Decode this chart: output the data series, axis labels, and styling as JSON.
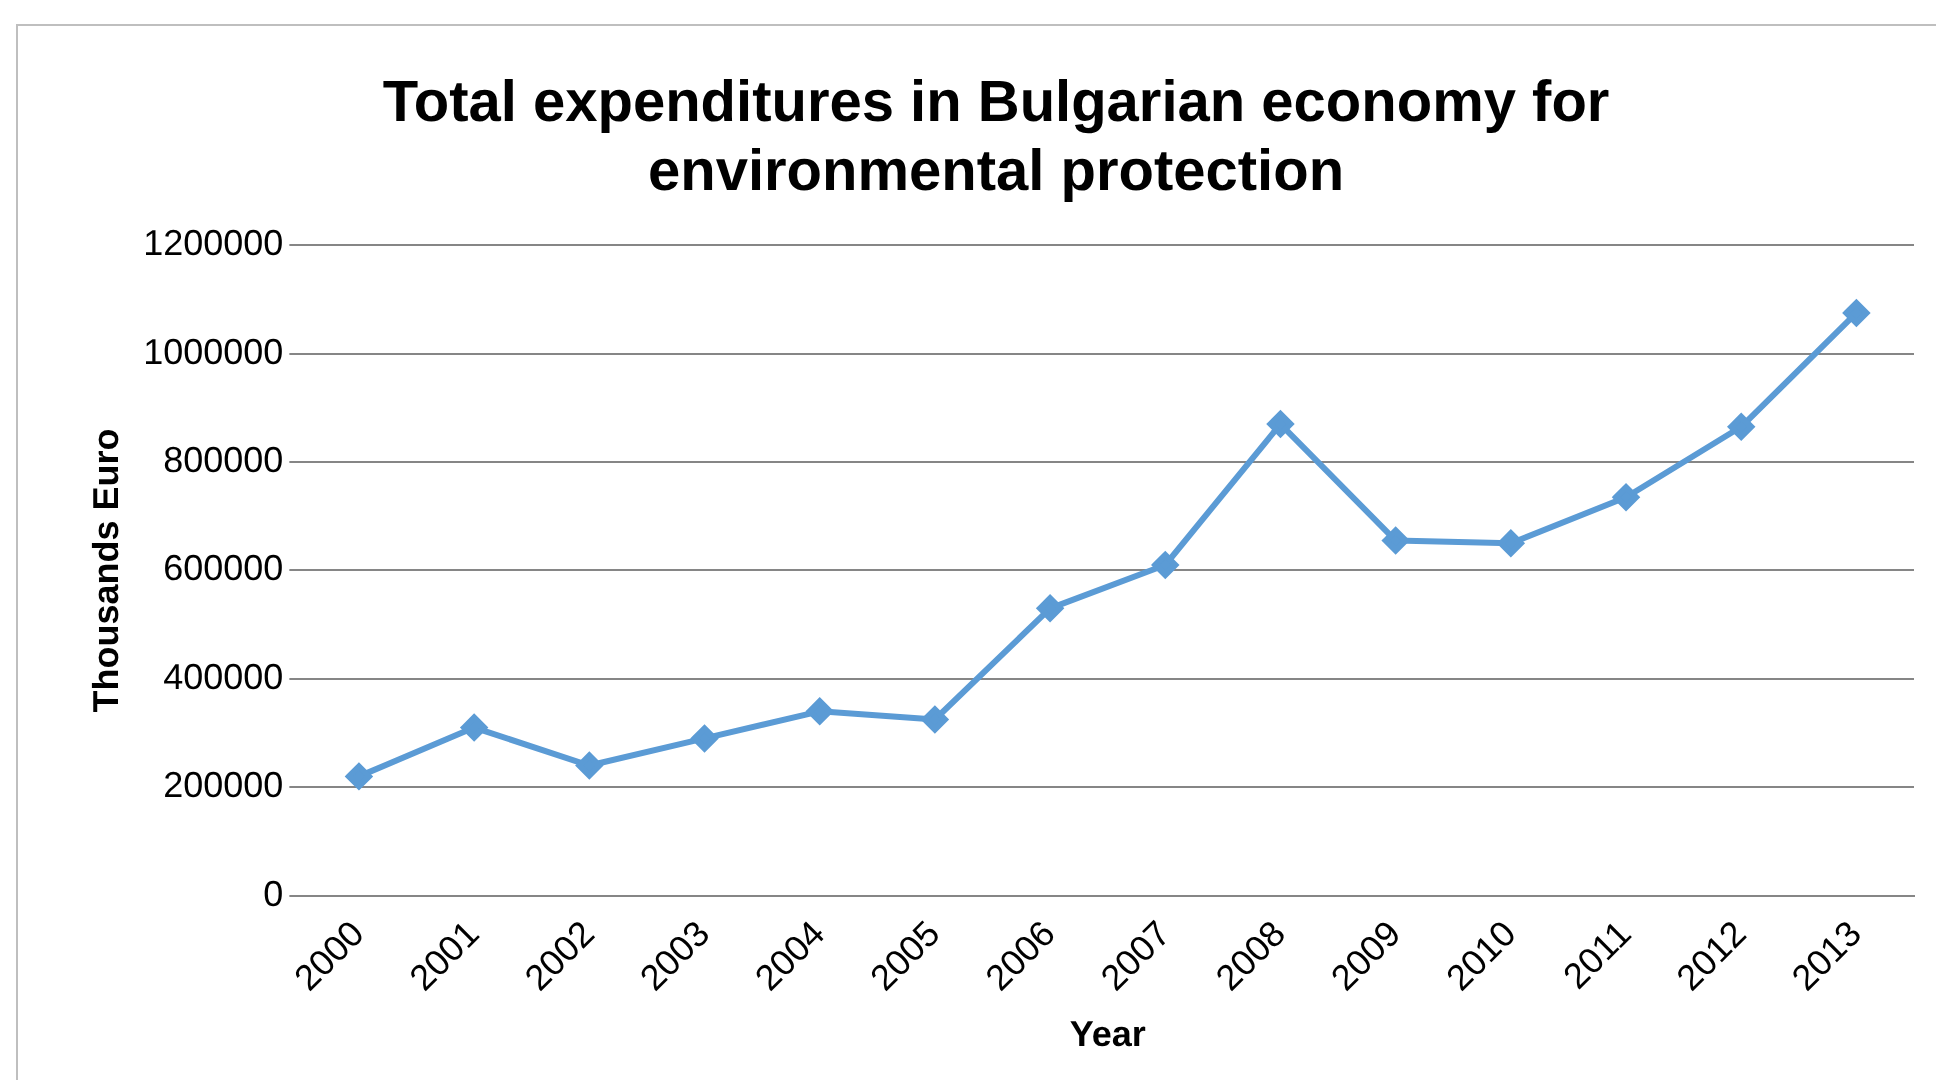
{
  "chart_data": {
    "type": "line",
    "title": "Total expenditures in Bulgarian economy for environmental protection",
    "xlabel": "Year",
    "ylabel": "Thousands Euro",
    "categories": [
      "2000",
      "2001",
      "2002",
      "2003",
      "2004",
      "2005",
      "2006",
      "2007",
      "2008",
      "2009",
      "2010",
      "2011",
      "2012",
      "2013"
    ],
    "series": [
      {
        "color": "#5b9bd5",
        "values": [
          220000,
          310000,
          240000,
          290000,
          340000,
          325000,
          530000,
          610000,
          870000,
          655000,
          650000,
          735000,
          865000,
          1075000
        ]
      }
    ],
    "ylim": [
      0,
      1200000
    ],
    "yticks": [
      0,
      200000,
      400000,
      600000,
      800000,
      1000000,
      1200000
    ],
    "grid": "y",
    "legend": false,
    "marker": "diamond",
    "line_style": "solid"
  }
}
